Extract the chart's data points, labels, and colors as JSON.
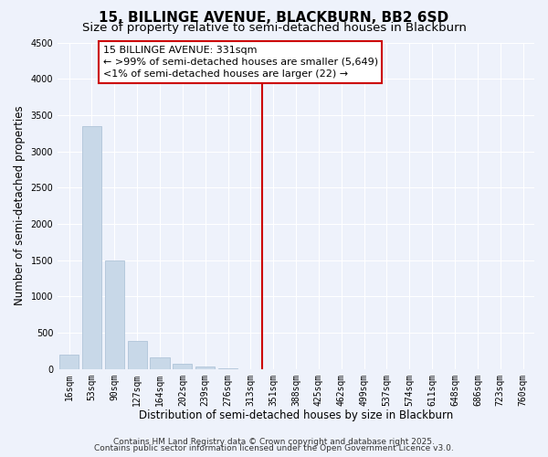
{
  "title": "15, BILLINGE AVENUE, BLACKBURN, BB2 6SD",
  "subtitle": "Size of property relative to semi-detached houses in Blackburn",
  "xlabel": "Distribution of semi-detached houses by size in Blackburn",
  "ylabel": "Number of semi-detached properties",
  "bar_labels": [
    "16sqm",
    "53sqm",
    "90sqm",
    "127sqm",
    "164sqm",
    "202sqm",
    "239sqm",
    "276sqm",
    "313sqm",
    "351sqm",
    "388sqm",
    "425sqm",
    "462sqm",
    "499sqm",
    "537sqm",
    "574sqm",
    "611sqm",
    "648sqm",
    "686sqm",
    "723sqm",
    "760sqm"
  ],
  "bar_values": [
    200,
    3350,
    1500,
    390,
    155,
    75,
    40,
    10,
    0,
    0,
    0,
    0,
    0,
    0,
    0,
    0,
    0,
    0,
    0,
    0,
    0
  ],
  "bar_color": "#c8d8e8",
  "bar_edge_color": "#b0c4d8",
  "vline_x_idx": 8.5,
  "vline_color": "#cc0000",
  "annotation_line1": "15 BILLINGE AVENUE: 331sqm",
  "annotation_line2": "← >99% of semi-detached houses are smaller (5,649)",
  "annotation_line3": "<1% of semi-detached houses are larger (22) →",
  "ylim": [
    0,
    4500
  ],
  "yticks": [
    0,
    500,
    1000,
    1500,
    2000,
    2500,
    3000,
    3500,
    4000,
    4500
  ],
  "background_color": "#eef2fb",
  "grid_color": "#ffffff",
  "footer_line1": "Contains HM Land Registry data © Crown copyright and database right 2025.",
  "footer_line2": "Contains public sector information licensed under the Open Government Licence v3.0.",
  "title_fontsize": 11,
  "subtitle_fontsize": 9.5,
  "axis_label_fontsize": 8.5,
  "tick_fontsize": 7,
  "annotation_fontsize": 8,
  "footer_fontsize": 6.5
}
